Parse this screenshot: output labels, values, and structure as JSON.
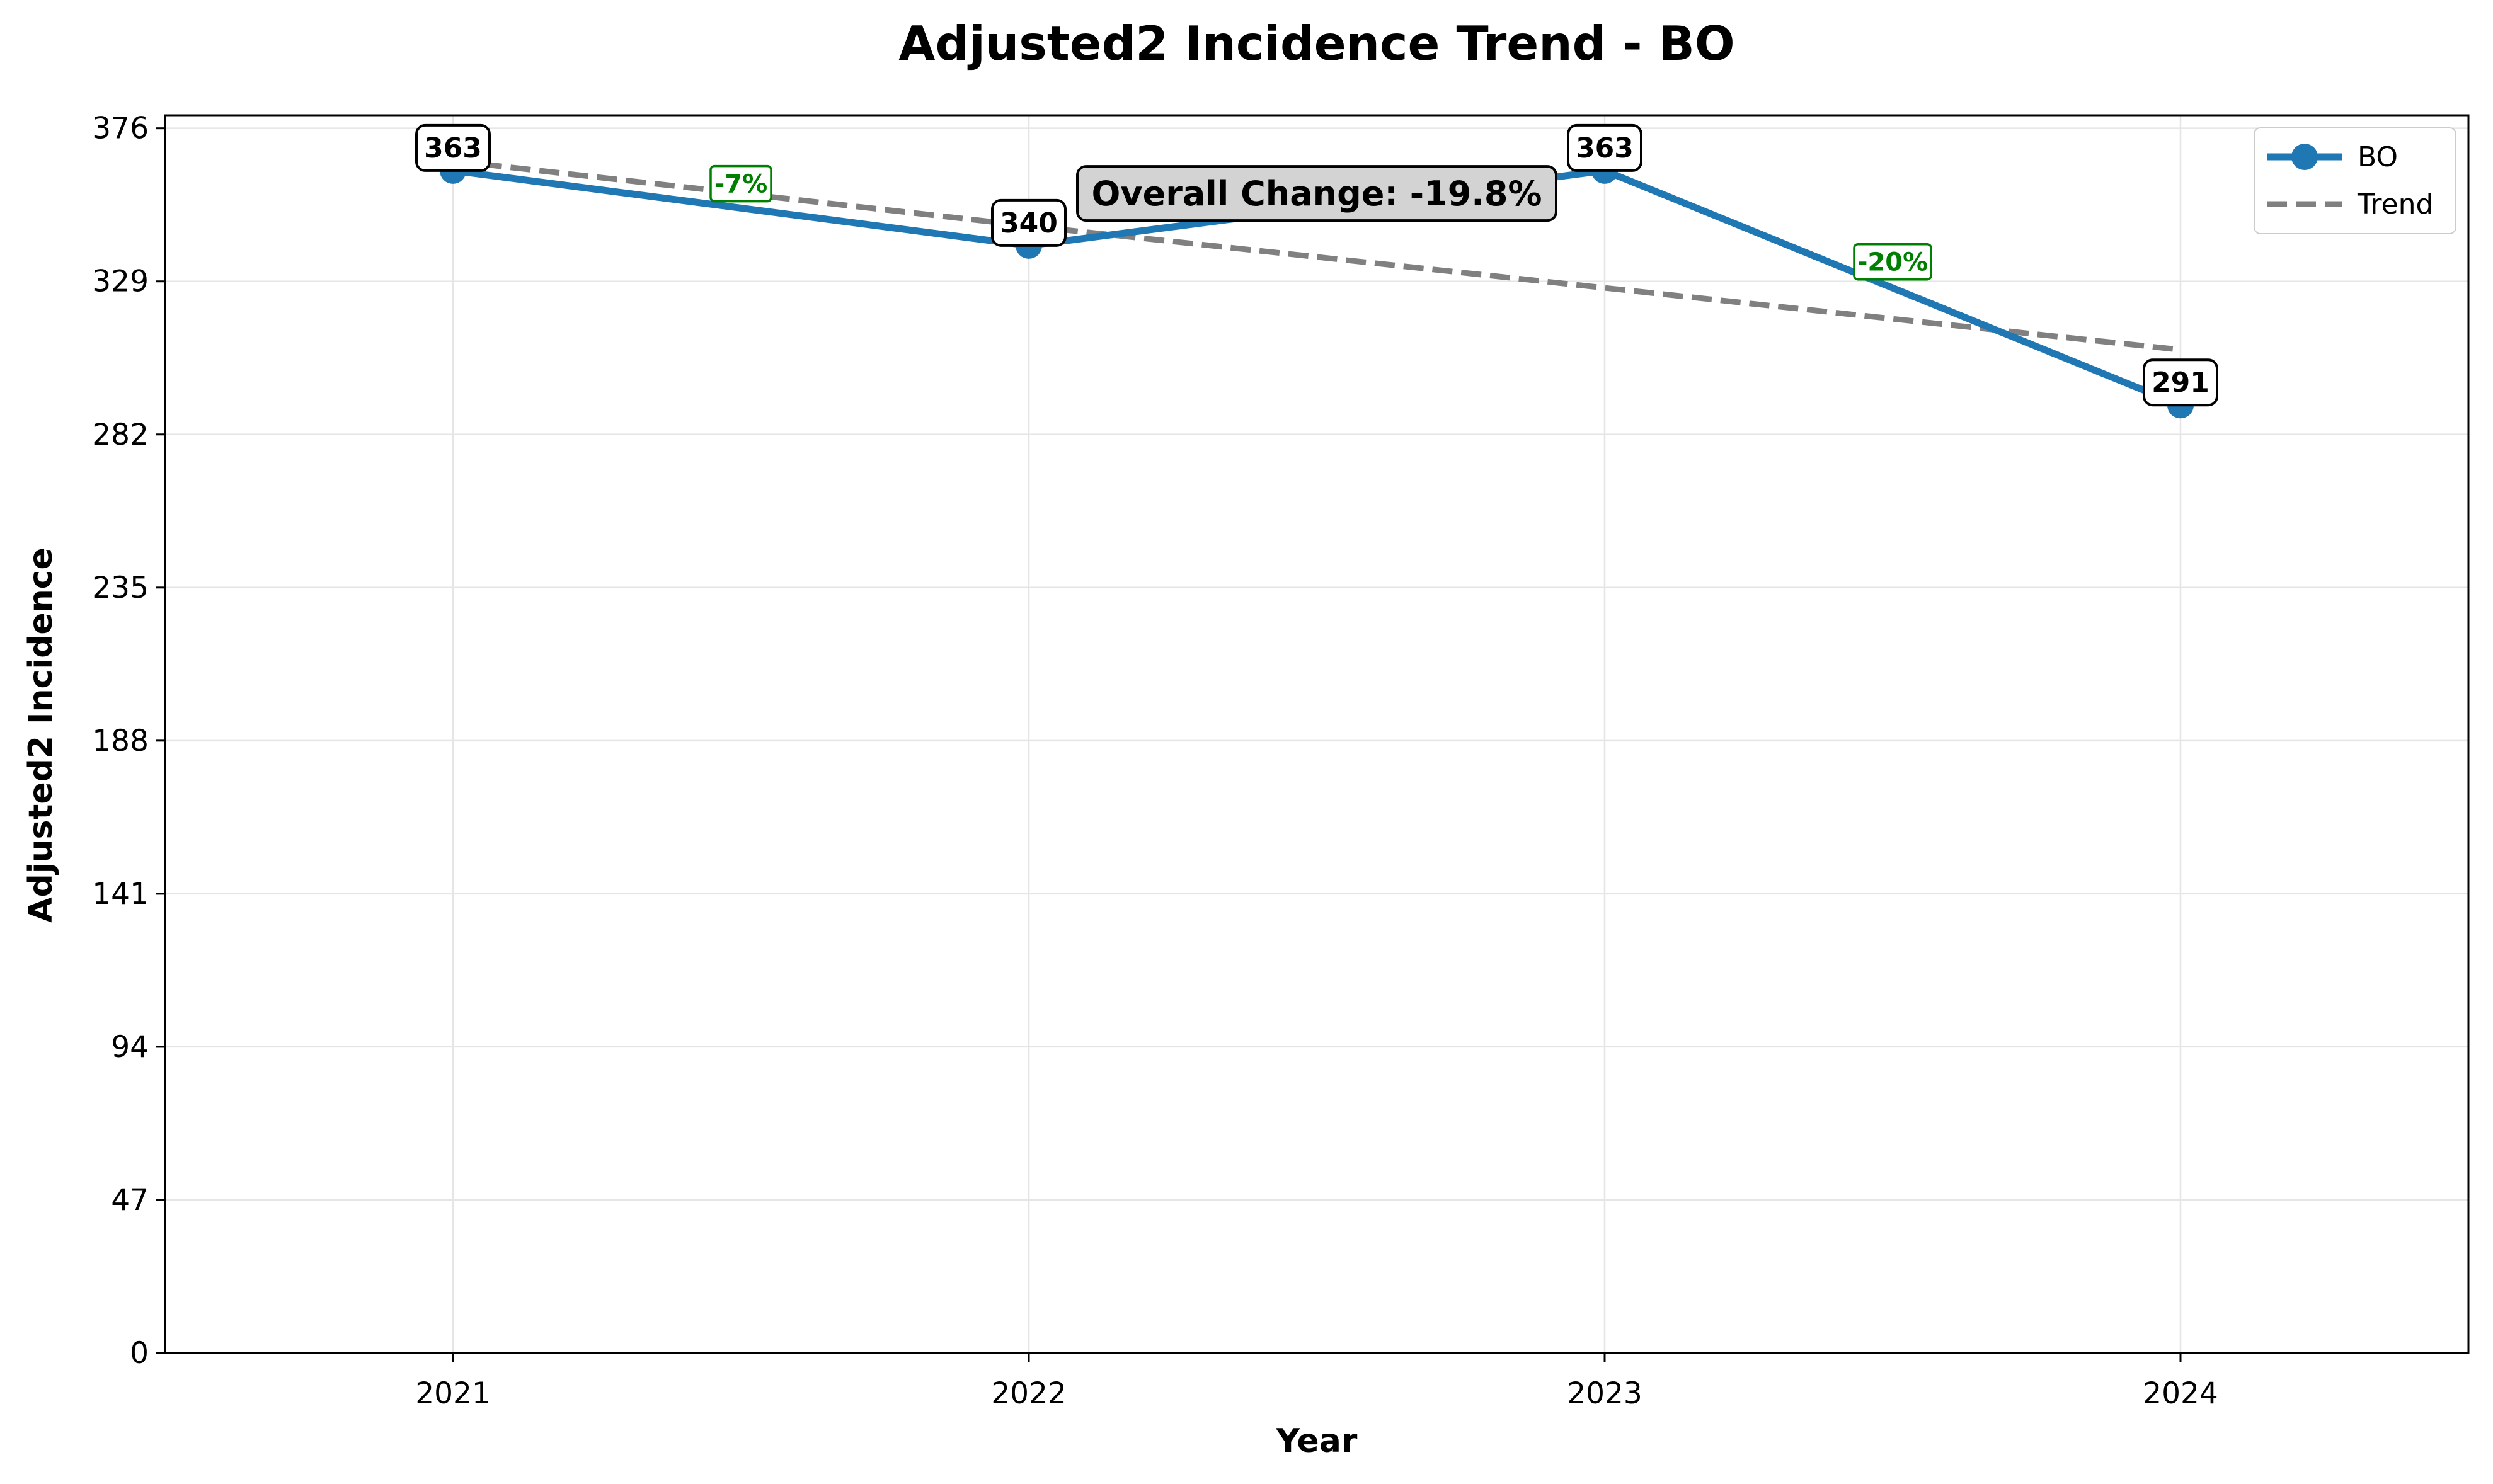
{
  "chart_data": {
    "type": "line",
    "title": "Adjusted2 Incidence Trend - BO",
    "xlabel": "Year",
    "ylabel": "Adjusted2 Incidence",
    "x": [
      2021,
      2022,
      2023,
      2024
    ],
    "x_tick_labels": [
      "2021",
      "2022",
      "2023",
      "2024"
    ],
    "xlim": [
      2020.5,
      2024.5
    ],
    "ylim": [
      0,
      380
    ],
    "y_ticks": [
      0,
      47,
      94,
      141,
      188,
      235,
      282,
      329,
      376
    ],
    "y_tick_labels": [
      "0",
      "47",
      "94",
      "141",
      "188",
      "235",
      "282",
      "329",
      "376"
    ],
    "grid": true,
    "legend_position": "top-right",
    "series": [
      {
        "name": "BO",
        "values": [
          363,
          340,
          363,
          291
        ],
        "labels": [
          "363",
          "340",
          "363",
          "291"
        ],
        "color": "#1f77b4"
      },
      {
        "name": "Trend",
        "values": [
          366,
          346,
          327,
          308
        ],
        "color": "#808080",
        "style": "dashed"
      }
    ],
    "pct_annotations": [
      {
        "text": "-7%",
        "x": 2021.5,
        "y": 359,
        "color": "#008000"
      },
      {
        "text": "-20%",
        "x": 2023.5,
        "y": 335,
        "color": "#008000"
      }
    ],
    "overall_annotation": {
      "text": "Overall Change: -19.8%",
      "x": 2022.5,
      "y": 356
    }
  }
}
